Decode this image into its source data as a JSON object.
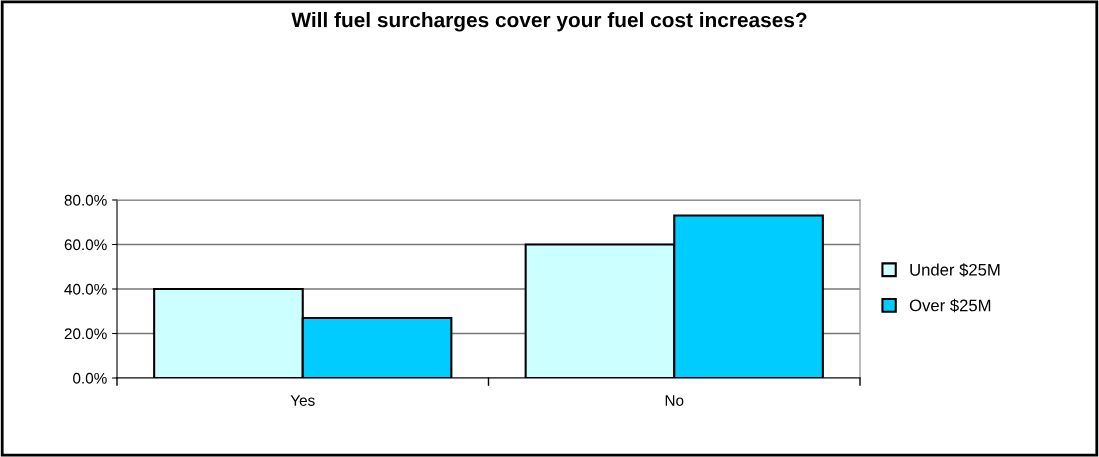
{
  "chart_data": {
    "type": "bar",
    "title": "Will fuel surcharges cover your fuel cost increases?",
    "categories": [
      "Yes",
      "No"
    ],
    "series": [
      {
        "name": "Under $25M",
        "color": "#ccffff",
        "values": [
          40,
          60
        ]
      },
      {
        "name": "Over $25M",
        "color": "#00ccff",
        "values": [
          27,
          73
        ]
      }
    ],
    "ylim": [
      0,
      80
    ],
    "yticks": [
      {
        "value": 0,
        "label": "0.0%"
      },
      {
        "value": 20,
        "label": "20.0%"
      },
      {
        "value": 40,
        "label": "40.0%"
      },
      {
        "value": 60,
        "label": "60.0%"
      },
      {
        "value": 80,
        "label": "80.0%"
      }
    ],
    "grid": "y",
    "legend": "right"
  }
}
